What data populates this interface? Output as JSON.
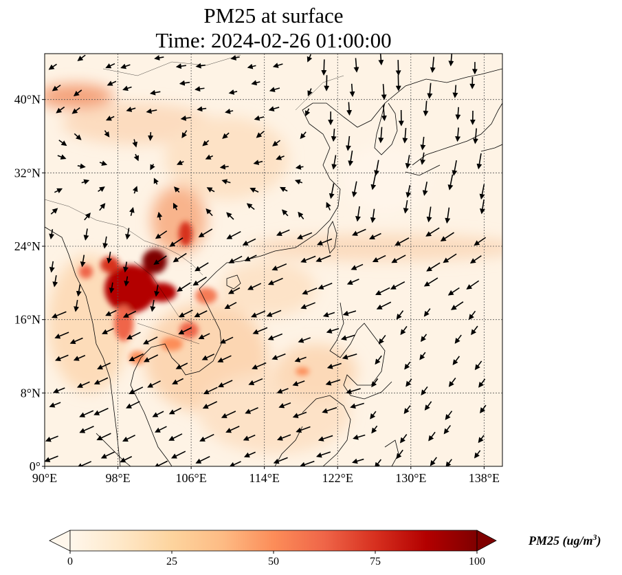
{
  "title_line1": "PM25 at surface",
  "title_line2": "Time: 2024-02-26 01:00:00",
  "map": {
    "lon_range": [
      90,
      140
    ],
    "lat_range": [
      0,
      45
    ],
    "lon_ticks": [
      90,
      98,
      106,
      114,
      122,
      130,
      138
    ],
    "lon_tick_labels": [
      "90°E",
      "98°E",
      "106°E",
      "114°E",
      "122°E",
      "130°E",
      "138°E"
    ],
    "lat_ticks": [
      0,
      8,
      16,
      24,
      32,
      40
    ],
    "lat_tick_labels": [
      "0°",
      "8°N",
      "16°N",
      "24°N",
      "32°N",
      "40°N"
    ],
    "gridlines": true,
    "colormap": "OrRd"
  },
  "colorbar": {
    "label_main": "PM25 (ug/m",
    "label_sup": "3",
    "label_close": ")",
    "ticks": [
      0,
      25,
      50,
      75,
      100
    ],
    "tick_labels": [
      "0",
      "25",
      "50",
      "75",
      "100"
    ],
    "extend": "both",
    "colors": [
      "#fff7ec",
      "#fee8c8",
      "#fdd49e",
      "#fdbb84",
      "#fc8d59",
      "#ef6548",
      "#d7301f",
      "#b30000",
      "#7f0000"
    ]
  }
}
